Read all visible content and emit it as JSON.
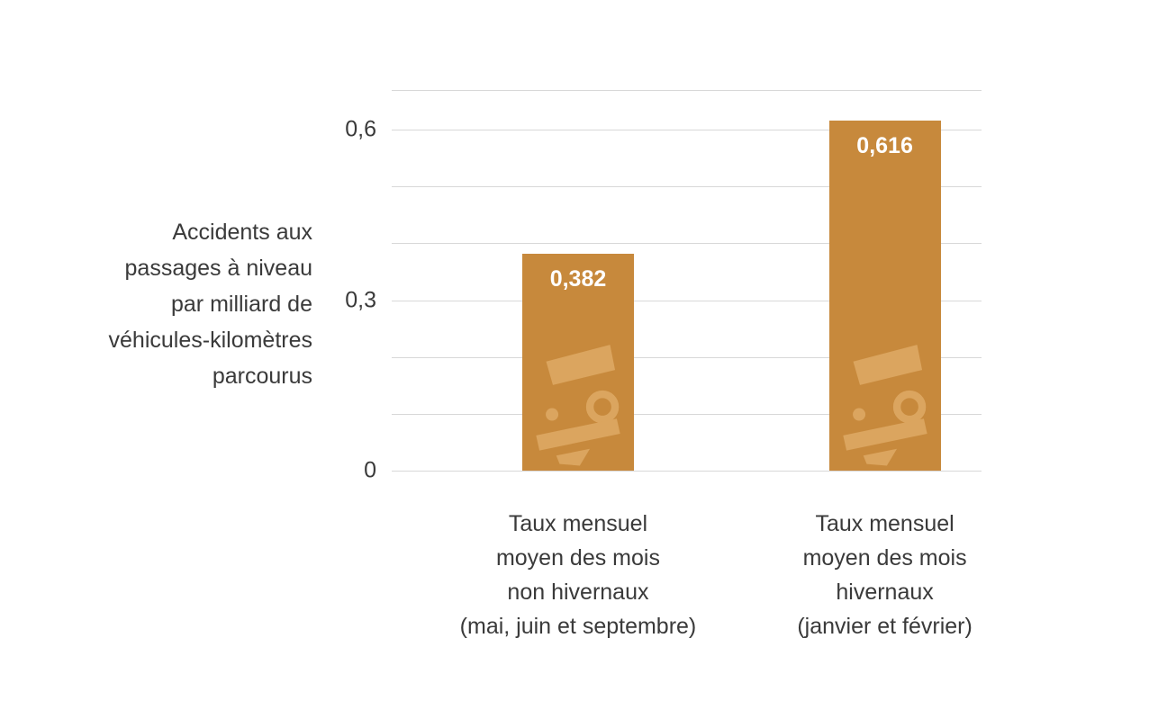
{
  "chart_data": {
    "type": "bar",
    "title": "",
    "y_axis_title": "Accidents aux passages à niveau par milliard de véhicules-kilomètres parcourus",
    "y_axis_title_lines": [
      "Accidents aux",
      "passages à niveau",
      "par milliard de",
      "véhicules-kilomètres",
      "parcourus"
    ],
    "categories": [
      "Taux mensuel moyen des mois non hivernaux (mai, juin et septembre)",
      "Taux mensuel moyen des mois hivernaux (janvier et février)"
    ],
    "category_label_lines": [
      [
        "Taux mensuel",
        "moyen des mois",
        "non hivernaux",
        "(mai, juin et septembre)"
      ],
      [
        "Taux mensuel",
        "moyen des mois",
        "hivernaux",
        "(janvier et février)"
      ]
    ],
    "values": [
      0.382,
      0.616
    ],
    "value_labels": [
      "0,382",
      "0,616"
    ],
    "ylim": [
      0,
      0.67
    ],
    "yticks": [
      {
        "value": 0,
        "label": "0"
      },
      {
        "value": 0.3,
        "label": "0,3"
      },
      {
        "value": 0.6,
        "label": "0,6"
      }
    ],
    "gridlines": [
      0,
      0.1,
      0.2,
      0.3,
      0.4,
      0.5,
      0.6,
      0.67
    ],
    "grid": true,
    "legend": "none",
    "decimal_separator": ",",
    "watermark_icon": "train-front-icon",
    "colors": {
      "bar": "#c7893c",
      "bar_watermark": "#dba55f",
      "text": "#3a3a3a",
      "gridline": "#d8d8d8",
      "value_label_text": "#ffffff",
      "background": "#ffffff"
    }
  }
}
